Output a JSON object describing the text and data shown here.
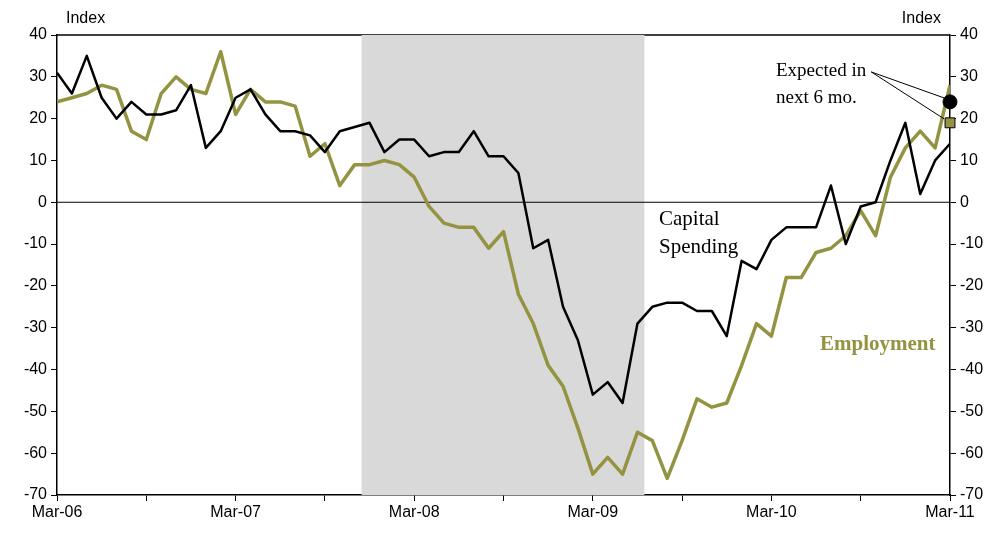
{
  "chart_data": {
    "type": "line",
    "ylabel": "Index",
    "y2label": "Index",
    "x": [
      "2006-03",
      "2006-04",
      "2006-05",
      "2006-06",
      "2006-07",
      "2006-08",
      "2006-09",
      "2006-10",
      "2006-11",
      "2006-12",
      "2007-01",
      "2007-02",
      "2007-03",
      "2007-04",
      "2007-05",
      "2007-06",
      "2007-07",
      "2007-08",
      "2007-09",
      "2007-10",
      "2007-11",
      "2007-12",
      "2008-01",
      "2008-02",
      "2008-03",
      "2008-04",
      "2008-05",
      "2008-06",
      "2008-07",
      "2008-08",
      "2008-09",
      "2008-10",
      "2008-11",
      "2008-12",
      "2009-01",
      "2009-02",
      "2009-03",
      "2009-04",
      "2009-05",
      "2009-06",
      "2009-07",
      "2009-08",
      "2009-09",
      "2009-10",
      "2009-11",
      "2009-12",
      "2010-01",
      "2010-02",
      "2010-03",
      "2010-04",
      "2010-05",
      "2010-06",
      "2010-07",
      "2010-08",
      "2010-09",
      "2010-10",
      "2010-11",
      "2010-12",
      "2011-01",
      "2011-02",
      "2011-03"
    ],
    "series": [
      {
        "name": "Capital Spending",
        "color": "#000000",
        "values": [
          31,
          26,
          35,
          25,
          20,
          24,
          21,
          21,
          22,
          28,
          13,
          17,
          25,
          27,
          21,
          17,
          17,
          16,
          12,
          17,
          18,
          19,
          12,
          15,
          15,
          11,
          12,
          12,
          17,
          11,
          11,
          7,
          -11,
          -9,
          -25,
          -33,
          -46,
          -43,
          -48,
          -29,
          -25,
          -24,
          -24,
          -26,
          -26,
          -32,
          -14,
          -16,
          -9,
          -6,
          -6,
          -6,
          4,
          -10,
          -1,
          0,
          10,
          19,
          2,
          10,
          14
        ]
      },
      {
        "name": "Employment",
        "color": "#939341",
        "values": [
          24,
          25,
          26,
          28,
          27,
          17,
          15,
          26,
          30,
          27,
          26,
          36,
          21,
          27,
          24,
          24,
          23,
          11,
          14,
          4,
          9,
          9,
          10,
          9,
          6,
          -1,
          -5,
          -6,
          -6,
          -11,
          -7,
          -22,
          -29,
          -39,
          -44,
          -54,
          -65,
          -61,
          -65,
          -55,
          -57,
          -66,
          -57,
          -47,
          -49,
          -48,
          -39,
          -29,
          -32,
          -18,
          -18,
          -12,
          -11,
          -8,
          -2,
          -8,
          6,
          13,
          17,
          13,
          28
        ]
      },
      {
        "type": "scatter",
        "marker": "circle",
        "color": "#000000",
        "x": [
          "2011-03"
        ],
        "values": [
          24
        ]
      },
      {
        "type": "scatter",
        "marker": "square",
        "color": "#939341",
        "x": [
          "2011-03"
        ],
        "values": [
          19
        ]
      }
    ],
    "xlim": [
      "2006-03",
      "2011-03"
    ],
    "xticks": [
      {
        "value": "2006-03",
        "label": "Mar-06"
      },
      {
        "value": "2006-09",
        "label": null
      },
      {
        "value": "2007-03",
        "label": "Mar-07"
      },
      {
        "value": "2007-09",
        "label": null
      },
      {
        "value": "2008-03",
        "label": "Mar-08"
      },
      {
        "value": "2008-09",
        "label": null
      },
      {
        "value": "2009-03",
        "label": "Mar-09"
      },
      {
        "value": "2009-09",
        "label": null
      },
      {
        "value": "2010-03",
        "label": "Mar-10"
      },
      {
        "value": "2010-09",
        "label": null
      },
      {
        "value": "2011-03",
        "label": "Mar-11"
      }
    ],
    "ylim": [
      -70,
      40
    ],
    "yticks": [
      -70,
      -60,
      -50,
      -40,
      -30,
      -20,
      -10,
      0,
      10,
      20,
      30,
      40
    ],
    "y2lim": [
      -70,
      40
    ],
    "y2ticks": [
      -70,
      -60,
      -50,
      -40,
      -30,
      -20,
      -10,
      0,
      10,
      20,
      30,
      40
    ],
    "ref_lines": [
      {
        "axis": "y",
        "value": 0,
        "color": "#000000"
      }
    ],
    "bands": [
      {
        "axis": "x",
        "from": "2007-11-15",
        "to": "2009-06-15",
        "color": "#d9d9d9"
      }
    ],
    "annotations": [
      {
        "text": "Expected in next 6 mo.",
        "x": "2011-03",
        "y": 24
      }
    ],
    "grid": false,
    "legend": false,
    "marker": "none",
    "line_style": "solid"
  }
}
